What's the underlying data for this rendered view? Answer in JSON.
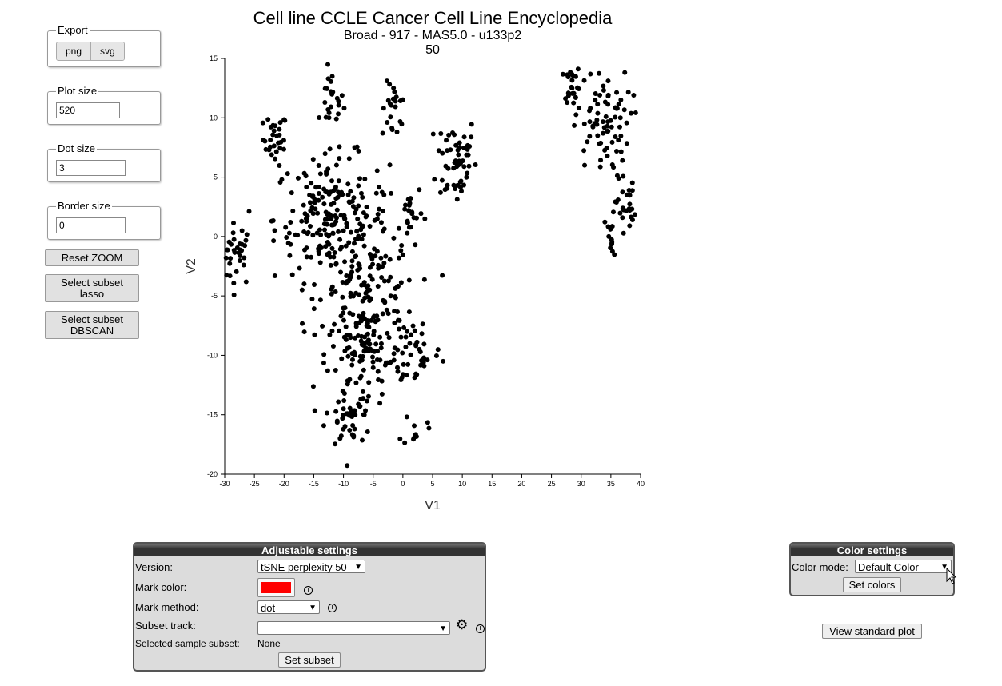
{
  "sidebar": {
    "export_legend": "Export",
    "export_png": "png",
    "export_svg": "svg",
    "plot_size_legend": "Plot size",
    "plot_size_value": "520",
    "dot_size_legend": "Dot size",
    "dot_size_value": "3",
    "border_size_legend": "Border size",
    "border_size_value": "0",
    "reset_zoom": "Reset ZOOM",
    "subset_lasso_1": "Select subset",
    "subset_lasso_2": "lasso",
    "subset_dbscan_1": "Select subset",
    "subset_dbscan_2": "DBSCAN"
  },
  "adjustable": {
    "header": "Adjustable settings",
    "version_label": "Version:",
    "version_value": "tSNE perplexity 50",
    "mark_color_label": "Mark color:",
    "mark_color": "#ff0000",
    "mark_method_label": "Mark method:",
    "mark_method_value": "dot",
    "subset_track_label": "Subset track:",
    "subset_track_value": "",
    "selected_subset_label": "Selected sample subset:",
    "selected_subset_value": "None",
    "set_subset": "Set subset",
    "info_icon": "info-icon",
    "gear_icon": "gear-icon"
  },
  "color_settings": {
    "header": "Color settings",
    "color_mode_label": "Color mode:",
    "color_mode_value": "Default Color",
    "set_colors": "Set colors"
  },
  "view_standard_plot": "View standard plot",
  "chart_data": {
    "type": "scatter",
    "title": "Cell line CCLE Cancer Cell Line Encyclopedia",
    "subtitle": "Broad - 917 - MAS5.0 - u133p2",
    "subtitle2": "50",
    "xlabel": "V1",
    "ylabel": "V2",
    "xlim": [
      -30,
      40
    ],
    "ylim": [
      -20,
      15
    ],
    "xticks": [
      -30,
      -25,
      -20,
      -15,
      -10,
      -5,
      0,
      5,
      10,
      15,
      20,
      25,
      30,
      35,
      40
    ],
    "yticks": [
      -20,
      -15,
      -10,
      -5,
      0,
      5,
      10,
      15
    ],
    "grid": false,
    "point_color": "#000000",
    "clusters": [
      {
        "cx": -28,
        "cy": -1.5,
        "sx": 1.4,
        "sy": 1.3,
        "n": 35
      },
      {
        "cx": -21.5,
        "cy": 8.2,
        "sx": 1.0,
        "sy": 1.1,
        "n": 30
      },
      {
        "cx": -12,
        "cy": 11.5,
        "sx": 1.0,
        "sy": 1.2,
        "n": 22
      },
      {
        "cx": -1.5,
        "cy": 10.5,
        "sx": 1.0,
        "sy": 1.2,
        "n": 22
      },
      {
        "cx": 9,
        "cy": 6.5,
        "sx": 1.7,
        "sy": 2.0,
        "n": 55
      },
      {
        "cx": 1,
        "cy": 2,
        "sx": 1.2,
        "sy": 1.3,
        "n": 22
      },
      {
        "cx": -12,
        "cy": 1.5,
        "sx": 4.8,
        "sy": 2.6,
        "n": 210
      },
      {
        "cx": -6,
        "cy": -5.5,
        "sx": 4.0,
        "sy": 2.8,
        "n": 150
      },
      {
        "cx": -6,
        "cy": -10,
        "sx": 3.5,
        "sy": 1.8,
        "n": 75
      },
      {
        "cx": 2.5,
        "cy": -9.5,
        "sx": 2.0,
        "sy": 1.6,
        "n": 35
      },
      {
        "cx": -9,
        "cy": -15,
        "sx": 2.0,
        "sy": 1.5,
        "n": 48
      },
      {
        "cx": 2,
        "cy": -16.2,
        "sx": 1.0,
        "sy": 0.7,
        "n": 10
      },
      {
        "cx": 28.5,
        "cy": 12.8,
        "sx": 0.6,
        "sy": 0.8,
        "n": 22
      },
      {
        "cx": 33.5,
        "cy": 9.5,
        "sx": 2.4,
        "sy": 2.4,
        "n": 80
      },
      {
        "cx": 37.5,
        "cy": 2.5,
        "sx": 0.8,
        "sy": 1.0,
        "n": 25
      },
      {
        "cx": 35,
        "cy": -0.3,
        "sx": 0.5,
        "sy": 1.1,
        "n": 14
      }
    ]
  }
}
